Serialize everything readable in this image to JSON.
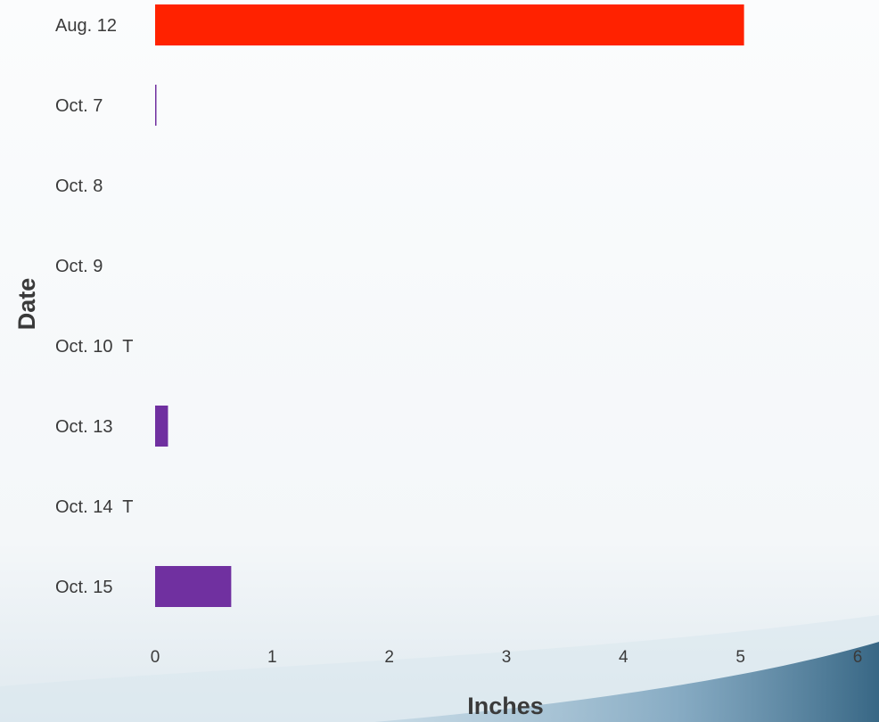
{
  "chart_data": {
    "type": "bar",
    "orientation": "horizontal",
    "xlabel": "Inches",
    "ylabel": "Date",
    "xlim": [
      0,
      6
    ],
    "x_ticks": [
      0,
      1,
      2,
      3,
      4,
      5,
      6
    ],
    "grid": false,
    "categories": [
      "Aug. 12",
      "Oct. 7",
      "Oct. 8",
      "Oct. 9",
      "Oct. 10  T",
      "Oct. 13",
      "Oct. 14  T",
      "Oct. 15"
    ],
    "values": [
      5.03,
      0.01,
      0,
      0,
      0,
      0.11,
      0,
      0.65
    ],
    "colors": [
      "#ff2200",
      "#7030a0",
      "#7030a0",
      "#7030a0",
      "#7030a0",
      "#7030a0",
      "#7030a0",
      "#7030a0"
    ]
  },
  "theme": {
    "background": "#f7f9fb",
    "swoosh_color": "#3d6f93"
  }
}
